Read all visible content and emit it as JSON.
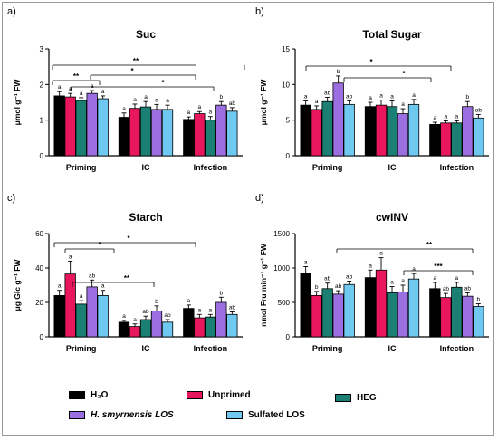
{
  "legend": [
    {
      "label": "H₂O",
      "color": "#000000"
    },
    {
      "label": "Unprimed",
      "color": "#e8175d"
    },
    {
      "label": "HEG",
      "color": "#1b7f73"
    },
    {
      "label": "H. smyrnensis LOS",
      "color": "#9b6fe0"
    },
    {
      "label": "Sulfated LOS",
      "color": "#6ec8f0"
    }
  ],
  "chart_data": [
    {
      "type": "bar",
      "panel": "a)",
      "title": "Suc",
      "ylabel": "μmol g⁻¹ FW",
      "ylim": [
        0,
        3
      ],
      "yticks": [
        "0",
        "1",
        "2",
        "3"
      ],
      "categories": [
        "Priming",
        "IC",
        "Infection"
      ],
      "series": [
        {
          "name": "H₂O",
          "values": [
            1.68,
            1.08,
            1.02
          ],
          "errors": [
            0.12,
            0.12,
            0.07
          ],
          "letters": [
            "a",
            "a",
            "a"
          ]
        },
        {
          "name": "Unprimed",
          "values": [
            1.65,
            1.33,
            1.18
          ],
          "errors": [
            0.1,
            0.12,
            0.06
          ],
          "letters": [
            "a",
            "a",
            "a"
          ]
        },
        {
          "name": "HEG",
          "values": [
            1.55,
            1.37,
            1.0
          ],
          "errors": [
            0.08,
            0.15,
            0.1
          ],
          "letters": [
            "a",
            "a",
            "a"
          ]
        },
        {
          "name": "H. smyrnensis LOS",
          "values": [
            1.75,
            1.3,
            1.42
          ],
          "errors": [
            0.08,
            0.14,
            0.1
          ],
          "letters": [
            "a",
            "a",
            "b"
          ]
        },
        {
          "name": "Sulfated LOS",
          "values": [
            1.6,
            1.3,
            1.25
          ],
          "errors": [
            0.08,
            0.12,
            0.1
          ],
          "letters": [
            "a",
            "a",
            "ab"
          ]
        }
      ],
      "annotations": [
        "**",
        "*",
        "*",
        "**"
      ]
    },
    {
      "type": "bar",
      "panel": "b)",
      "title": "Total Sugar",
      "ylabel": "μmol g⁻¹ FW",
      "ylim": [
        0,
        15
      ],
      "yticks": [
        "0",
        "5",
        "10",
        "15"
      ],
      "categories": [
        "Priming",
        "IC",
        "Infection"
      ],
      "series": [
        {
          "name": "H₂O",
          "values": [
            7.1,
            6.9,
            4.4
          ],
          "errors": [
            0.6,
            0.6,
            0.3
          ],
          "letters": [
            "a",
            "a",
            "a"
          ]
        },
        {
          "name": "Unprimed",
          "values": [
            6.5,
            7.1,
            4.6
          ],
          "errors": [
            0.5,
            0.7,
            0.3
          ],
          "letters": [
            "a",
            "a",
            "a"
          ]
        },
        {
          "name": "HEG",
          "values": [
            7.6,
            6.9,
            4.6
          ],
          "errors": [
            0.6,
            0.8,
            0.3
          ],
          "letters": [
            "ab",
            "a",
            "a"
          ]
        },
        {
          "name": "H. smyrnensis LOS",
          "values": [
            10.2,
            5.9,
            6.9
          ],
          "errors": [
            1.0,
            0.7,
            0.7
          ],
          "letters": [
            "b",
            "a",
            "b"
          ]
        },
        {
          "name": "Sulfated LOS",
          "values": [
            7.2,
            7.2,
            5.3
          ],
          "errors": [
            0.5,
            0.7,
            0.5
          ],
          "letters": [
            "ab",
            "a",
            "ab"
          ]
        }
      ],
      "annotations": [
        "*",
        "*"
      ]
    },
    {
      "type": "bar",
      "panel": "c)",
      "title": "Starch",
      "ylabel": "μg Glc g⁻¹ FW",
      "ylim": [
        0,
        60
      ],
      "yticks": [
        "0",
        "20",
        "40",
        "60"
      ],
      "categories": [
        "Priming",
        "IC",
        "Infection"
      ],
      "series": [
        {
          "name": "H₂O",
          "values": [
            24,
            8.5,
            16.5
          ],
          "errors": [
            3,
            1,
            2
          ],
          "letters": [
            "a",
            "a",
            "a"
          ]
        },
        {
          "name": "Unprimed",
          "values": [
            36.5,
            6,
            11
          ],
          "errors": [
            7.5,
            1.5,
            2
          ],
          "letters": [
            "a",
            "a",
            "a"
          ]
        },
        {
          "name": "HEG",
          "values": [
            19,
            10,
            11.5
          ],
          "errors": [
            2,
            2,
            1.5
          ],
          "letters": [
            "a",
            "ab",
            "a"
          ]
        },
        {
          "name": "H. smyrnensis LOS",
          "values": [
            29,
            15,
            20
          ],
          "errors": [
            4,
            3,
            3
          ],
          "letters": [
            "ab",
            "b",
            "b"
          ]
        },
        {
          "name": "Sulfated LOS",
          "values": [
            24,
            8.5,
            13
          ],
          "errors": [
            3,
            1.5,
            1.5
          ],
          "letters": [
            "a",
            "ab",
            "ab"
          ]
        }
      ],
      "annotations": [
        "*",
        "*",
        "**"
      ]
    },
    {
      "type": "bar",
      "panel": "d)",
      "title": "cwINV",
      "ylabel": "nmol Fru min⁻¹ g⁻¹ FW",
      "ylim": [
        0,
        1500
      ],
      "yticks": [
        "0",
        "500",
        "1000",
        "1500"
      ],
      "categories": [
        "Priming",
        "IC",
        "Infection"
      ],
      "series": [
        {
          "name": "H₂O",
          "values": [
            920,
            860,
            700
          ],
          "errors": [
            100,
            110,
            90
          ],
          "letters": [
            "a",
            "a",
            "a"
          ]
        },
        {
          "name": "Unprimed",
          "values": [
            600,
            970,
            570
          ],
          "errors": [
            60,
            180,
            60
          ],
          "letters": [
            "b",
            "a",
            "ab"
          ]
        },
        {
          "name": "HEG",
          "values": [
            700,
            640,
            720
          ],
          "errors": [
            80,
            90,
            70
          ],
          "letters": [
            "ab",
            "a",
            "a"
          ]
        },
        {
          "name": "H. smyrnensis LOS",
          "values": [
            620,
            650,
            590
          ],
          "errors": [
            50,
            100,
            50
          ],
          "letters": [
            "ab",
            "a",
            "ab"
          ]
        },
        {
          "name": "Sulfated LOS",
          "values": [
            760,
            840,
            440
          ],
          "errors": [
            50,
            80,
            40
          ],
          "letters": [
            "ab",
            "a",
            "b"
          ]
        }
      ],
      "annotations": [
        "**",
        "***"
      ]
    }
  ]
}
